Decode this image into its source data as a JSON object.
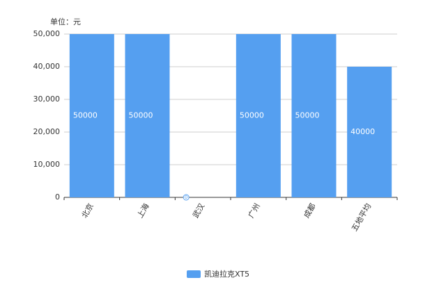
{
  "chart_data": {
    "type": "bar",
    "y_unit_label": "单位：元",
    "categories": [
      "北京",
      "上海",
      "武汉",
      "广州",
      "成都",
      "五地平均"
    ],
    "series": [
      {
        "name": "凯迪拉克XT5",
        "color": "#559ff0",
        "values": [
          50000,
          50000,
          0,
          50000,
          50000,
          40000
        ]
      }
    ],
    "ylim": [
      0,
      50000
    ],
    "yticks": [
      0,
      {
        "value": 10000,
        "label": "10,000"
      },
      {
        "value": 20000,
        "label": "20,000"
      },
      {
        "value": 30000,
        "label": "30,000"
      },
      {
        "value": 40000,
        "label": "40,000"
      },
      {
        "value": 50000,
        "label": "50,000"
      }
    ],
    "grid": true,
    "legend": "bottom"
  }
}
